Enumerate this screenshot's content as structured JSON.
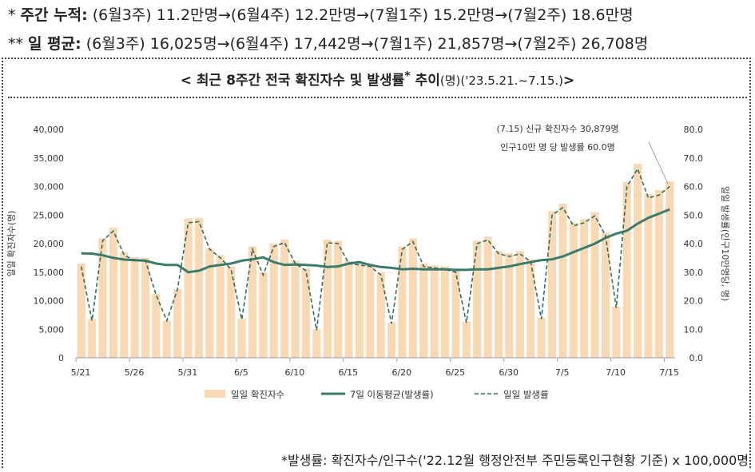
{
  "summary": {
    "row1_mark": "*",
    "row1_label": "주간 누적:",
    "row1_text": "(6월3주) 11.2만명→(6월4주) 12.2만명→(7월1주) 15.2만명→(7월2주) 18.6만명",
    "row2_mark": "**",
    "row2_label": "일 평균:",
    "row2_text": "(6월3주) 16,025명→(6월4주) 17,442명→(7월1주) 21,857명→(7월2주) 26,708명"
  },
  "title": {
    "main": "< 최근 8주간 전국 확진자수 및 발생률",
    "star": "*",
    "suffix": " 추이",
    "unit": "(명)",
    "period": "('23.5.21.~7.15.)",
    "close": ">"
  },
  "annotation": {
    "line1": "(7.15) 신규 확진자수 30,879명",
    "line2": "인구10만 명 당 발생률 60.0명"
  },
  "footnote": "*발생률: 확진자수/인구수('22.12월 행정안전부 주민등록인구현황 기준) x 100,000명",
  "colors": {
    "bar": "#f9d9b4",
    "ma": "#3b7b6b",
    "rate": "#2f6e5e"
  },
  "chart_data": {
    "type": "bar",
    "x_tick_labels": [
      "5/21",
      "5/26",
      "5/31",
      "6/5",
      "6/10",
      "6/15",
      "6/20",
      "6/25",
      "6/30",
      "7/5",
      "7/10",
      "7/15"
    ],
    "ylabel": "일일 확진자수(명)",
    "y2label": "일일 발생률(인구10만명당, 명)",
    "ylim": [
      0,
      40000
    ],
    "y2lim": [
      0,
      80
    ],
    "y_ticks": [
      "0",
      "5,000",
      "10,000",
      "15,000",
      "20,000",
      "25,000",
      "30,000",
      "35,000",
      "40,000"
    ],
    "y2_ticks": [
      "0.0",
      "10.0",
      "20.0",
      "30.0",
      "40.0",
      "50.0",
      "60.0",
      "70.0",
      "80.0"
    ],
    "legend": [
      "일일 확진자수",
      "7일 이동평균(발생률)",
      "일일 발생률"
    ],
    "legend_position": "bottom",
    "daily_cases": [
      16500,
      6800,
      21000,
      22800,
      18500,
      17600,
      17500,
      11200,
      6500,
      12000,
      24400,
      24500,
      19200,
      18000,
      16000,
      6900,
      19500,
      15000,
      20000,
      20700,
      17000,
      15700,
      5000,
      20700,
      20500,
      17000,
      16800,
      16500,
      15000,
      6200,
      19500,
      20900,
      16500,
      16200,
      16000,
      15400,
      6300,
      20500,
      21200,
      18700,
      18300,
      18700,
      17300,
      7000,
      25700,
      27000,
      23700,
      24300,
      25500,
      22000,
      9000,
      30800,
      34000,
      28700,
      29400,
      30879
    ],
    "daily_rate": [
      32.0,
      13.0,
      41.0,
      44.4,
      36.0,
      34.0,
      34.0,
      22.0,
      13.0,
      24.0,
      47.3,
      47.7,
      38.0,
      35.0,
      31.0,
      13.4,
      38.0,
      29.0,
      39.0,
      40.3,
      33.0,
      30.5,
      9.7,
      40.3,
      40.0,
      33.0,
      32.5,
      32.0,
      29.0,
      12.0,
      38.0,
      40.7,
      32.0,
      31.5,
      31.0,
      30.0,
      12.3,
      40.0,
      41.3,
      36.5,
      35.5,
      36.4,
      33.7,
      13.6,
      50.0,
      52.6,
      46.2,
      47.3,
      49.7,
      42.8,
      17.5,
      60.0,
      66.2,
      56.0,
      57.0,
      60.0
    ],
    "moving_avg_rate": [
      36.6,
      36.5,
      35.9,
      35.0,
      34.4,
      34.2,
      34.0,
      33.0,
      32.5,
      32.5,
      30.0,
      30.5,
      32.0,
      32.5,
      33.0,
      34.0,
      34.5,
      35.2,
      33.5,
      32.5,
      32.7,
      32.5,
      32.3,
      31.8,
      32.0,
      33.0,
      33.5,
      32.5,
      31.8,
      31.5,
      31.0,
      31.2,
      31.0,
      31.0,
      31.0,
      30.8,
      30.8,
      31.0,
      31.0,
      31.5,
      32.0,
      32.8,
      33.5,
      34.2,
      34.5,
      35.5,
      37.0,
      38.5,
      40.0,
      42.0,
      43.5,
      44.5,
      47.0,
      49.0,
      50.5,
      52.0
    ]
  }
}
